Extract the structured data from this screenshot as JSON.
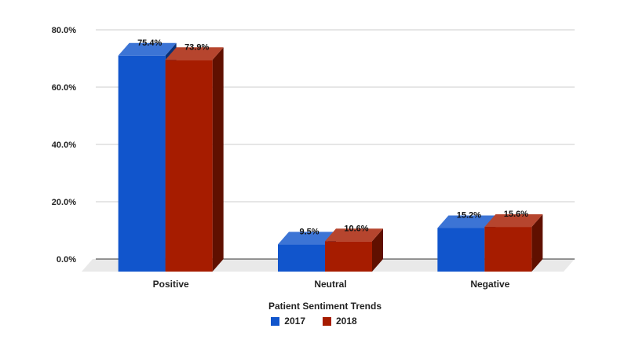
{
  "chart_data": {
    "type": "bar",
    "style": "3d-clustered",
    "title": "",
    "xlabel": "Patient Sentiment Trends",
    "ylabel": "",
    "categories": [
      "Positive",
      "Neutral",
      "Negative"
    ],
    "series": [
      {
        "name": "2017",
        "values": [
          75.4,
          9.5,
          15.2
        ],
        "labels": [
          "75.4%",
          "9.5%",
          "15.2%"
        ],
        "color": "#1155cc"
      },
      {
        "name": "2018",
        "values": [
          73.9,
          10.6,
          15.6
        ],
        "labels": [
          "73.9%",
          "10.6%",
          "15.6%"
        ],
        "color": "#a61c00"
      }
    ],
    "ylim": [
      0,
      80
    ],
    "yticks": [
      {
        "value": 0,
        "label": "0.0%"
      },
      {
        "value": 20,
        "label": "20.0%"
      },
      {
        "value": 40,
        "label": "40.0%"
      },
      {
        "value": 60,
        "label": "60.0%"
      },
      {
        "value": 80,
        "label": "80.0%"
      }
    ],
    "grid": true,
    "legend_position": "bottom"
  }
}
